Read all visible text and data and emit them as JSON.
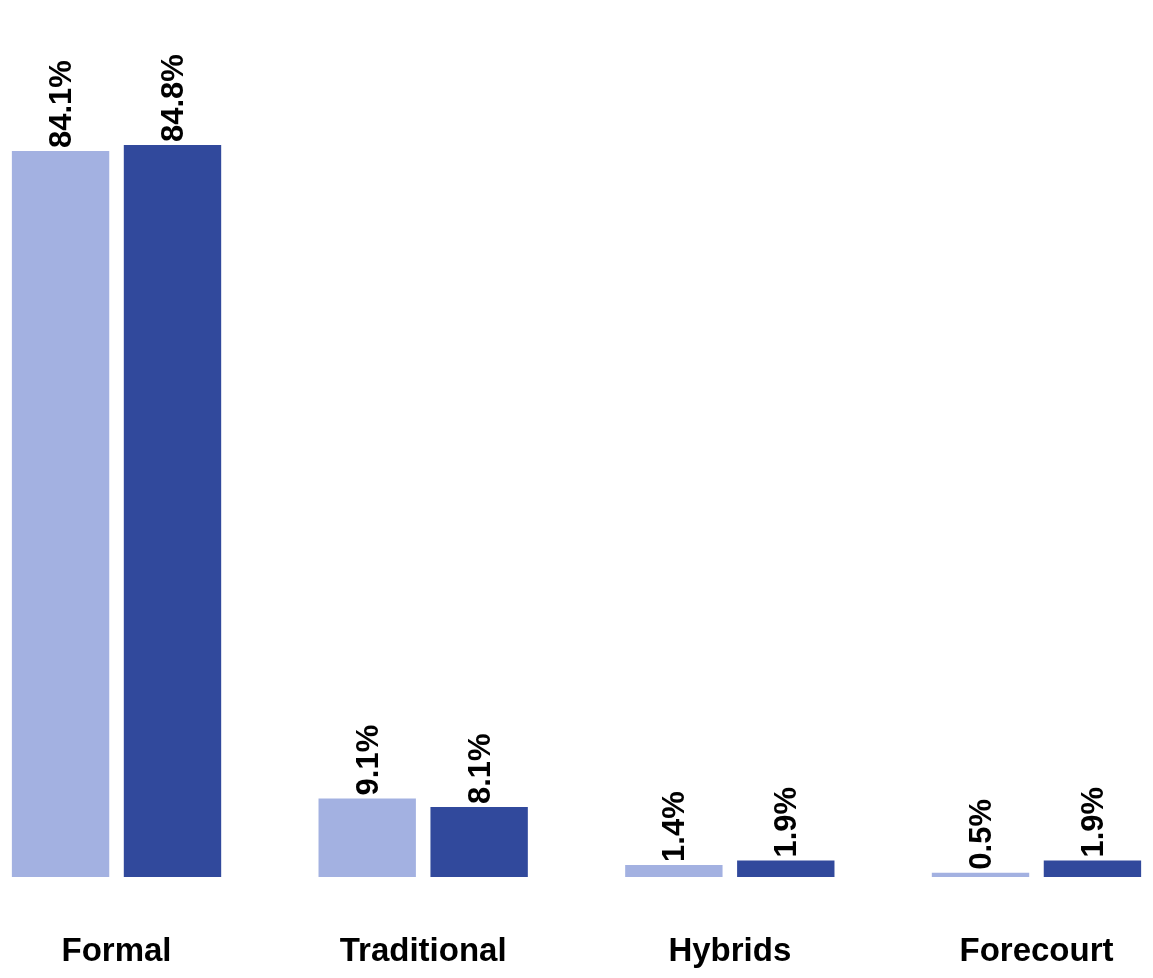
{
  "chart_data": {
    "type": "bar",
    "categories": [
      "Formal",
      "Traditional",
      "Hybrids",
      "Forecourt"
    ],
    "series": [
      {
        "color": "#a3b1e1",
        "values": [
          84.1,
          9.1,
          1.4,
          0.5
        ],
        "value_labels": [
          "84.1%",
          "9.1%",
          "1.4%",
          "0.5%"
        ]
      },
      {
        "color": "#31499c",
        "values": [
          84.8,
          8.1,
          1.9,
          1.9
        ],
        "value_labels": [
          "84.8%",
          "8.1%",
          "1.9%",
          "1.9%"
        ]
      }
    ],
    "grid": false,
    "tick_labels": "x"
  }
}
